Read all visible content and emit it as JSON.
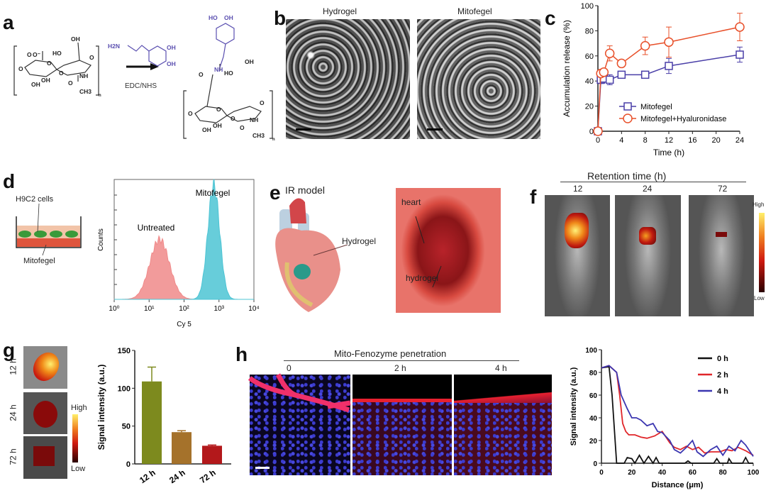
{
  "panels": {
    "a": {
      "label": "a",
      "reagent": "EDC/NHS",
      "dopamine": {
        "amine": "H2N",
        "oh1": "OH",
        "oh2": "OH"
      },
      "reactant": {
        "carboxylate": "O",
        "carboxylate_o": "O⁻",
        "oh_top": "OH",
        "ho": "HO",
        "ring_o1": "O",
        "ring_o2": "O",
        "link_o": "O",
        "left_o": "O",
        "oh_b1": "OH",
        "oh_b2": "OH",
        "nh": "NH",
        "co": "O",
        "ch3": "CH3",
        "n": "n"
      },
      "product": {
        "ho1": "HO",
        "oh1": "OH",
        "nh_amide": "NH",
        "co": "O",
        "oh_top": "OH",
        "ho": "HO",
        "ring_o1": "O",
        "ring_o2": "O",
        "link_o": "O",
        "left_o": "O",
        "oh_b1": "OH",
        "oh_b2": "OH",
        "nh": "NH",
        "co2": "O",
        "ch3": "CH3",
        "n": "n"
      }
    },
    "b": {
      "label": "b",
      "left_title": "Hydrogel",
      "right_title": "Mitofegel"
    },
    "d": {
      "label": "d",
      "cells_label": "H9C2 cells",
      "gel_label": "Mitofegel"
    },
    "e": {
      "label": "e",
      "title": "IR model",
      "hydrogel_label": "Hydrogel",
      "photo_heart": "heart",
      "photo_hydrogel": "hydrogel"
    },
    "f": {
      "label": "f",
      "title": "Retention time (h)",
      "times": [
        "12",
        "24",
        "72"
      ],
      "scale_high": "High",
      "scale_low": "Low"
    },
    "g": {
      "label": "g",
      "times": [
        "12 h",
        "24 h",
        "72 h"
      ],
      "scale_high": "High",
      "scale_low": "Low"
    },
    "h": {
      "label": "h",
      "title": "Mito-Fenozyme penetration",
      "times": [
        "0",
        "2 h",
        "4 h"
      ]
    }
  },
  "colors": {
    "blue": "#4a3fa8",
    "red": "#e8502a",
    "olive": "#7d8a1e",
    "brown": "#a5722b",
    "darkred": "#b3181b",
    "pink": "#f08a8a",
    "cyan": "#4cc4d4",
    "chem_purple": "#5a4fb0"
  },
  "chart_data": [
    {
      "id": "c",
      "panel_label": "c",
      "type": "line",
      "xlabel": "Time (h)",
      "ylabel": "Accumulation release (%)",
      "xlim": [
        0,
        24
      ],
      "ylim": [
        0,
        100
      ],
      "xticks": [
        0,
        4,
        8,
        12,
        16,
        20,
        24
      ],
      "yticks": [
        0,
        20,
        40,
        60,
        80,
        100
      ],
      "legend": "bottom-right",
      "grid": false,
      "series": [
        {
          "name": "Mitofegel",
          "marker": "square",
          "color": "#4a3fa8",
          "x": [
            0,
            0.5,
            1,
            2,
            4,
            8,
            12,
            24
          ],
          "y": [
            0,
            41,
            42,
            41,
            45,
            45,
            52,
            61
          ],
          "err": [
            0,
            3,
            3,
            4,
            2,
            2,
            6,
            6
          ]
        },
        {
          "name": "Mitofegel+Hyaluronidase",
          "marker": "circle",
          "color": "#e8502a",
          "x": [
            0,
            0.5,
            1,
            2,
            4,
            8,
            12,
            24
          ],
          "y": [
            0,
            46,
            47,
            62,
            54,
            68,
            71,
            83
          ],
          "err": [
            0,
            2,
            2,
            6,
            2,
            7,
            12,
            11
          ]
        }
      ]
    },
    {
      "id": "d",
      "type": "area",
      "xlabel": "Cy 5",
      "ylabel": "Counts",
      "xscale": "log",
      "xlim": [
        1,
        10000
      ],
      "xticks": [
        "10⁰",
        "10¹",
        "10²",
        "10³",
        "10⁴"
      ],
      "series": [
        {
          "name": "Untreated",
          "peak_log10": 1.3,
          "width_log10": 0.28,
          "rel_height": 0.5,
          "color": "#f08a8a"
        },
        {
          "name": "Mitofegel",
          "peak_log10": 2.85,
          "width_log10": 0.17,
          "rel_height": 0.95,
          "color": "#4cc4d4"
        }
      ]
    },
    {
      "id": "g",
      "type": "bar",
      "ylabel": "Signal intensity (a.u.)",
      "ylim": [
        0,
        150
      ],
      "yticks": [
        0,
        50,
        100,
        150
      ],
      "categories": [
        "12 h",
        "24 h",
        "72 h"
      ],
      "values": [
        109,
        42,
        24
      ],
      "err": [
        19,
        2,
        1
      ],
      "bar_colors": [
        "#7d8a1e",
        "#a5722b",
        "#b3181b"
      ]
    },
    {
      "id": "h",
      "type": "line",
      "xlabel": "Distance (μm)",
      "ylabel": "Signal intensity (a.u.)",
      "xlim": [
        0,
        100
      ],
      "ylim": [
        0,
        100
      ],
      "xticks": [
        0,
        20,
        40,
        60,
        80,
        100
      ],
      "yticks": [
        0,
        20,
        40,
        60,
        80,
        100
      ],
      "legend": "top-right",
      "series": [
        {
          "name": "0 h",
          "color": "#111111",
          "points": [
            [
              0,
              84
            ],
            [
              5,
              85
            ],
            [
              7,
              60
            ],
            [
              9,
              20
            ],
            [
              10,
              0
            ],
            [
              15,
              0
            ],
            [
              17,
              5
            ],
            [
              20,
              4
            ],
            [
              22,
              0
            ],
            [
              25,
              7
            ],
            [
              28,
              0
            ],
            [
              31,
              6
            ],
            [
              34,
              0
            ],
            [
              36,
              5
            ],
            [
              38,
              0
            ],
            [
              55,
              0
            ],
            [
              57,
              2
            ],
            [
              59,
              0
            ],
            [
              74,
              0
            ],
            [
              76,
              4
            ],
            [
              78,
              0
            ],
            [
              83,
              0
            ],
            [
              84,
              4
            ],
            [
              86,
              0
            ],
            [
              93,
              0
            ],
            [
              95,
              5
            ],
            [
              97,
              0
            ],
            [
              100,
              0
            ]
          ]
        },
        {
          "name": "2 h",
          "color": "#e0262a",
          "points": [
            [
              0,
              84
            ],
            [
              5,
              86
            ],
            [
              10,
              80
            ],
            [
              12,
              60
            ],
            [
              14,
              35
            ],
            [
              16,
              28
            ],
            [
              18,
              25
            ],
            [
              22,
              25
            ],
            [
              26,
              23
            ],
            [
              30,
              22
            ],
            [
              35,
              24
            ],
            [
              40,
              28
            ],
            [
              45,
              18
            ],
            [
              48,
              14
            ],
            [
              52,
              12
            ],
            [
              56,
              15
            ],
            [
              60,
              12
            ],
            [
              64,
              14
            ],
            [
              68,
              9
            ],
            [
              72,
              10
            ],
            [
              78,
              10
            ],
            [
              82,
              12
            ],
            [
              86,
              11
            ],
            [
              90,
              14
            ],
            [
              95,
              11
            ],
            [
              100,
              7
            ]
          ]
        },
        {
          "name": "4 h",
          "color": "#3b36b0",
          "points": [
            [
              0,
              84
            ],
            [
              5,
              86
            ],
            [
              10,
              80
            ],
            [
              13,
              60
            ],
            [
              17,
              48
            ],
            [
              20,
              40
            ],
            [
              23,
              40
            ],
            [
              26,
              38
            ],
            [
              30,
              33
            ],
            [
              34,
              35
            ],
            [
              37,
              28
            ],
            [
              40,
              27
            ],
            [
              45,
              20
            ],
            [
              48,
              12
            ],
            [
              52,
              9
            ],
            [
              56,
              14
            ],
            [
              60,
              20
            ],
            [
              63,
              10
            ],
            [
              67,
              6
            ],
            [
              72,
              12
            ],
            [
              76,
              15
            ],
            [
              80,
              7
            ],
            [
              84,
              15
            ],
            [
              88,
              11
            ],
            [
              92,
              20
            ],
            [
              95,
              16
            ],
            [
              100,
              6
            ]
          ]
        }
      ]
    }
  ]
}
